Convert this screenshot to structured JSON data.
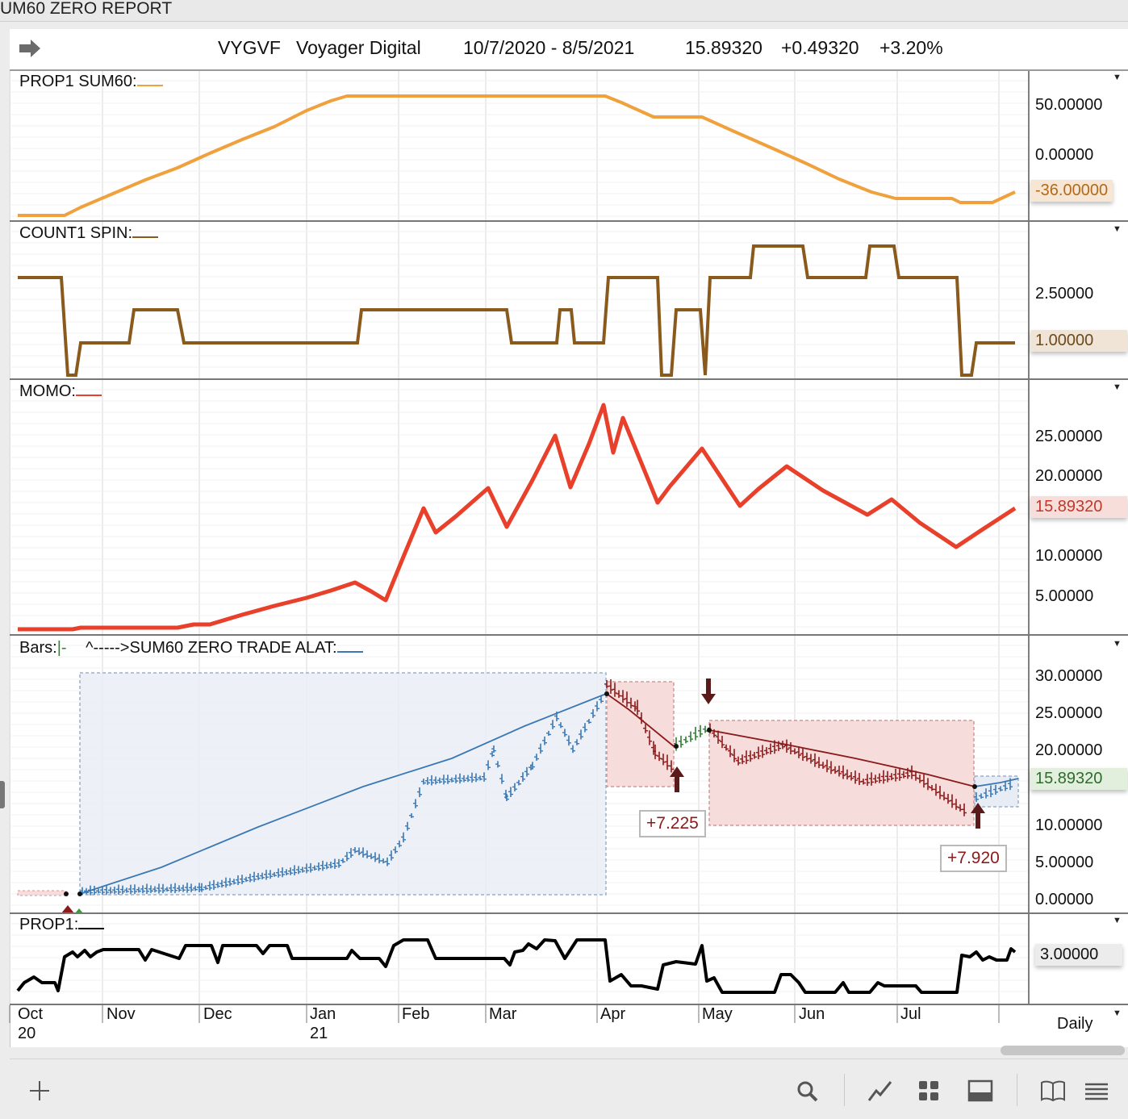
{
  "window": {
    "title": "UM60 ZERO REPORT"
  },
  "header": {
    "symbol": "VYGVF",
    "name": "Voyager Digital",
    "date_range": "10/7/2020 - 8/5/2021",
    "price": "15.89320",
    "change": "+0.49320",
    "change_pct": "+3.20%"
  },
  "panels": {
    "prop1_sum60": {
      "label": "PROP1 SUM60:",
      "color": "#f0a03c",
      "scale": [
        "50.00000",
        "0.00000"
      ],
      "badge": "-36.00000",
      "badge_bg": "#f7e6d3"
    },
    "count1_spin": {
      "label": "COUNT1 SPIN:",
      "color": "#8a5a1c",
      "scale": [
        "2.50000"
      ],
      "badge": "1.00000",
      "badge_bg": "#efe4d6"
    },
    "momo": {
      "label": "MOMO:",
      "color": "#e8402a",
      "scale": [
        "25.00000",
        "20.00000",
        "10.00000",
        "5.00000"
      ],
      "badge": "15.89320",
      "badge_bg": "#f8dedb"
    },
    "bars": {
      "label_prefix": "Bars:",
      "label_bars": "|-",
      "label_rest": "^----->SUM60 ZERO TRADE  ALAT:",
      "scale": [
        "30.00000",
        "25.00000",
        "20.00000",
        "10.00000",
        "5.00000",
        "0.00000"
      ],
      "badge": "15.89320",
      "badge_bg": "#e2efdc",
      "trades": [
        "+7.225",
        "+7.920"
      ],
      "long_color": "#3a78b5",
      "short_color": "#8b1a1a"
    },
    "prop1": {
      "label": "PROP1:",
      "color": "#000000",
      "scale": [
        "3.00000"
      ]
    }
  },
  "time_axis": {
    "months": [
      "Oct",
      "Nov",
      "Dec",
      "Jan",
      "Feb",
      "Mar",
      "Apr",
      "May",
      "Jun",
      "Jul"
    ],
    "years": [
      "20",
      "21"
    ],
    "interval": "Daily"
  },
  "toolbar": {
    "icons": [
      "add-icon",
      "search-icon",
      "line-chart-icon",
      "grid-icon",
      "panel-layout-icon",
      "book-icon",
      "menu-icon"
    ]
  }
}
